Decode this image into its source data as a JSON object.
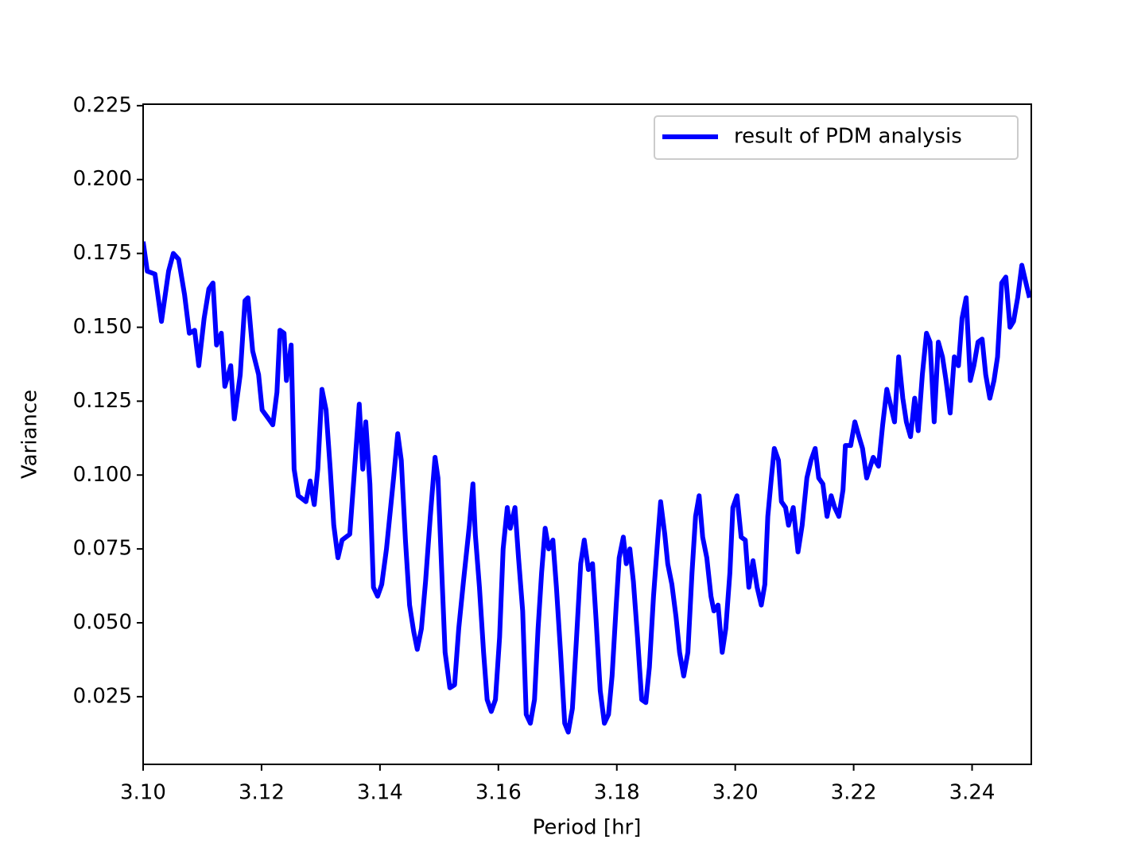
{
  "chart_data": {
    "type": "line",
    "xlabel": "Period [hr]",
    "ylabel": "Variance",
    "xlim": [
      3.1,
      3.25
    ],
    "ylim": [
      0.0021,
      0.2255
    ],
    "xticks": [
      {
        "value": 3.1,
        "label": "3.10"
      },
      {
        "value": 3.12,
        "label": "3.12"
      },
      {
        "value": 3.14,
        "label": "3.14"
      },
      {
        "value": 3.16,
        "label": "3.16"
      },
      {
        "value": 3.18,
        "label": "3.18"
      },
      {
        "value": 3.2,
        "label": "3.20"
      },
      {
        "value": 3.22,
        "label": "3.22"
      },
      {
        "value": 3.24,
        "label": "3.24"
      }
    ],
    "yticks": [
      0.025,
      {
        "value": 0.05,
        "label": "0.050"
      },
      0.075,
      {
        "value": 0.1,
        "label": "0.100"
      },
      0.125,
      {
        "value": 0.15,
        "label": "0.150"
      },
      0.175,
      {
        "value": 0.2,
        "label": "0.200"
      },
      0.225
    ],
    "legend": "upper right",
    "grid": false,
    "x": [
      3.1,
      3.1007,
      3.102,
      3.1031,
      3.1043,
      3.1051,
      3.106,
      3.107,
      3.1078,
      3.1087,
      3.1094,
      3.1103,
      3.1111,
      3.1118,
      3.1124,
      3.1132,
      3.1138,
      3.1148,
      3.1154,
      3.1164,
      3.1172,
      3.1177,
      3.1185,
      3.1195,
      3.1201,
      3.1212,
      3.1219,
      3.1226,
      3.1231,
      3.1238,
      3.1242,
      3.125,
      3.1255,
      3.1262,
      3.1275,
      3.1282,
      3.1289,
      3.1295,
      3.1302,
      3.1309,
      3.1316,
      3.1322,
      3.1329,
      3.1336,
      3.1349,
      3.1356,
      3.1365,
      3.1371,
      3.1376,
      3.1383,
      3.1389,
      3.1396,
      3.1403,
      3.1411,
      3.1423,
      3.143,
      3.1436,
      3.1443,
      3.145,
      3.1457,
      3.1463,
      3.147,
      3.1477,
      3.1485,
      3.1493,
      3.1498,
      3.1505,
      3.151,
      3.1518,
      3.1526,
      3.1533,
      3.1541,
      3.1551,
      3.1557,
      3.1561,
      3.1568,
      3.1575,
      3.1581,
      3.1588,
      3.1595,
      3.1602,
      3.1608,
      3.1615,
      3.162,
      3.1628,
      3.1634,
      3.1641,
      3.1647,
      3.1654,
      3.1661,
      3.1667,
      3.1673,
      3.1679,
      3.1685,
      3.1692,
      3.1698,
      3.1705,
      3.1712,
      3.1718,
      3.1725,
      3.1732,
      3.1739,
      3.1745,
      3.1752,
      3.1759,
      3.1765,
      3.1772,
      3.1779,
      3.1786,
      3.1792,
      3.1799,
      3.1804,
      3.1811,
      3.1816,
      3.1822,
      3.1828,
      3.1835,
      3.1842,
      3.1849,
      3.1855,
      3.1862,
      3.1869,
      3.1874,
      3.1881,
      3.1886,
      3.1893,
      3.19,
      3.1906,
      3.1913,
      3.192,
      3.1927,
      3.1933,
      3.1939,
      3.1945,
      3.1952,
      3.1959,
      3.1964,
      3.1971,
      3.1978,
      3.1984,
      3.1991,
      3.1996,
      3.2003,
      3.201,
      3.2017,
      3.2023,
      3.203,
      3.2037,
      3.2044,
      3.205,
      3.2055,
      3.2061,
      3.2066,
      3.2073,
      3.2078,
      3.2085,
      3.209,
      3.2098,
      3.2106,
      3.2113,
      3.2121,
      3.2128,
      3.2135,
      3.2141,
      3.2148,
      3.2155,
      3.2162,
      3.2168,
      3.2175,
      3.2182,
      3.2186,
      3.2195,
      3.2202,
      3.2209,
      3.2215,
      3.2222,
      3.2233,
      3.2242,
      3.2249,
      3.2256,
      3.2262,
      3.2269,
      3.2276,
      3.2283,
      3.2289,
      3.2296,
      3.2303,
      3.2309,
      3.2316,
      3.2323,
      3.2329,
      3.2336,
      3.2343,
      3.235,
      3.2356,
      3.2363,
      3.237,
      3.2377,
      3.2383,
      3.239,
      3.2397,
      3.2403,
      3.241,
      3.2417,
      3.2423,
      3.243,
      3.2437,
      3.2443,
      3.245,
      3.2457,
      3.2464,
      3.247,
      3.2477,
      3.2484,
      3.2491,
      3.2497
    ],
    "series": [
      {
        "name": "result of PDM analysis",
        "color": "#0000ff",
        "values": [
          0.179,
          0.169,
          0.168,
          0.152,
          0.169,
          0.175,
          0.173,
          0.161,
          0.148,
          0.149,
          0.137,
          0.153,
          0.163,
          0.165,
          0.144,
          0.148,
          0.13,
          0.137,
          0.119,
          0.134,
          0.159,
          0.16,
          0.142,
          0.134,
          0.122,
          0.119,
          0.117,
          0.128,
          0.149,
          0.148,
          0.132,
          0.144,
          0.102,
          0.093,
          0.091,
          0.098,
          0.09,
          0.102,
          0.129,
          0.122,
          0.102,
          0.083,
          0.072,
          0.078,
          0.08,
          0.099,
          0.124,
          0.102,
          0.118,
          0.097,
          0.062,
          0.059,
          0.063,
          0.075,
          0.099,
          0.114,
          0.105,
          0.078,
          0.056,
          0.047,
          0.041,
          0.048,
          0.064,
          0.086,
          0.106,
          0.099,
          0.064,
          0.04,
          0.028,
          0.029,
          0.048,
          0.064,
          0.083,
          0.097,
          0.08,
          0.062,
          0.04,
          0.024,
          0.02,
          0.024,
          0.045,
          0.075,
          0.089,
          0.082,
          0.089,
          0.072,
          0.054,
          0.019,
          0.016,
          0.024,
          0.048,
          0.067,
          0.082,
          0.075,
          0.078,
          0.062,
          0.04,
          0.016,
          0.013,
          0.021,
          0.045,
          0.07,
          0.078,
          0.068,
          0.07,
          0.051,
          0.027,
          0.016,
          0.019,
          0.032,
          0.056,
          0.072,
          0.079,
          0.07,
          0.075,
          0.064,
          0.045,
          0.024,
          0.023,
          0.035,
          0.059,
          0.078,
          0.091,
          0.08,
          0.07,
          0.063,
          0.052,
          0.04,
          0.032,
          0.04,
          0.067,
          0.086,
          0.093,
          0.079,
          0.072,
          0.059,
          0.054,
          0.056,
          0.04,
          0.048,
          0.067,
          0.089,
          0.093,
          0.079,
          0.078,
          0.062,
          0.071,
          0.062,
          0.056,
          0.063,
          0.086,
          0.099,
          0.109,
          0.105,
          0.091,
          0.089,
          0.083,
          0.089,
          0.074,
          0.083,
          0.099,
          0.105,
          0.109,
          0.099,
          0.097,
          0.086,
          0.093,
          0.089,
          0.086,
          0.095,
          0.11,
          0.11,
          0.118,
          0.113,
          0.109,
          0.099,
          0.106,
          0.103,
          0.117,
          0.129,
          0.124,
          0.118,
          0.14,
          0.126,
          0.118,
          0.113,
          0.126,
          0.115,
          0.134,
          0.148,
          0.145,
          0.118,
          0.145,
          0.14,
          0.132,
          0.121,
          0.14,
          0.137,
          0.153,
          0.16,
          0.132,
          0.137,
          0.145,
          0.146,
          0.134,
          0.126,
          0.132,
          0.14,
          0.165,
          0.167,
          0.15,
          0.152,
          0.16,
          0.171,
          0.165,
          0.16
        ]
      }
    ]
  }
}
